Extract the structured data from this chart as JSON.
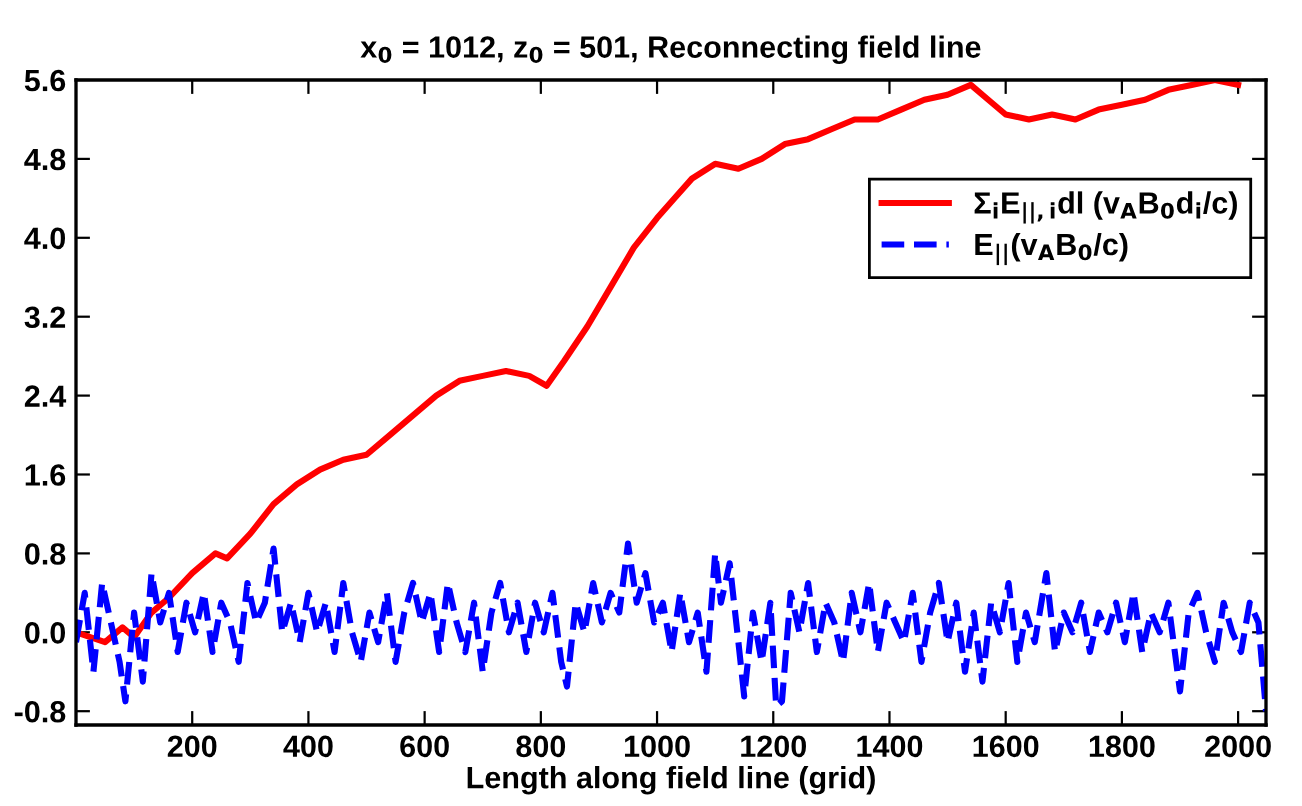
{
  "chart_data": {
    "type": "line",
    "title": "x$_{0}$ = 1012, z$_{0}$ = 501, Reconnecting field line",
    "xlabel": "Length along field line (grid)",
    "xlim": [
      0,
      2048
    ],
    "xticks": [
      200,
      400,
      600,
      800,
      1000,
      1200,
      1400,
      1600,
      1800,
      2000
    ],
    "ylim": [
      -0.94,
      5.6
    ],
    "yticks": [
      -0.8,
      {
        "value": 0,
        "label": "0.0"
      },
      0.8,
      1.6,
      2.4,
      3.2,
      {
        "value": 4,
        "label": "4.0"
      },
      4.8,
      5.6
    ],
    "grid": false,
    "legend": "top right",
    "marker": "none",
    "series": [
      {
        "name": "Σ$_{i}$E$_{||,i}$dl (v$_{A}$B$_{0}$d$_{i}$/c)",
        "color": "#ff0000",
        "line_style": "solid",
        "x": [
          0,
          50,
          80,
          100,
          130,
          160,
          200,
          240,
          260,
          300,
          340,
          380,
          420,
          460,
          500,
          540,
          580,
          620,
          660,
          700,
          740,
          780,
          810,
          840,
          880,
          920,
          960,
          1000,
          1030,
          1060,
          1100,
          1140,
          1180,
          1220,
          1260,
          1300,
          1340,
          1380,
          1420,
          1460,
          1500,
          1540,
          1570,
          1600,
          1640,
          1680,
          1720,
          1760,
          1800,
          1840,
          1880,
          1920,
          1960,
          2000
        ],
        "values": [
          0.0,
          -0.1,
          0.05,
          -0.05,
          0.2,
          0.35,
          0.6,
          0.8,
          0.75,
          1.0,
          1.3,
          1.5,
          1.65,
          1.75,
          1.8,
          2.0,
          2.2,
          2.4,
          2.55,
          2.6,
          2.65,
          2.6,
          2.5,
          2.75,
          3.1,
          3.5,
          3.9,
          4.2,
          4.4,
          4.6,
          4.75,
          4.7,
          4.8,
          4.95,
          5.0,
          5.1,
          5.2,
          5.2,
          5.3,
          5.4,
          5.45,
          5.55,
          5.4,
          5.25,
          5.2,
          5.25,
          5.2,
          5.3,
          5.35,
          5.4,
          5.5,
          5.55,
          5.6,
          5.55
        ]
      },
      {
        "name": "E$_{||}$(v$_{A}$B$_{0}$/c)",
        "color": "#0000ff",
        "line_style": "dashed",
        "x": [
          0,
          15,
          30,
          45,
          60,
          75,
          85,
          100,
          115,
          130,
          145,
          160,
          175,
          190,
          205,
          220,
          235,
          250,
          265,
          280,
          295,
          310,
          325,
          340,
          355,
          370,
          385,
          400,
          415,
          430,
          445,
          460,
          475,
          490,
          505,
          520,
          535,
          550,
          565,
          580,
          595,
          610,
          625,
          640,
          655,
          670,
          685,
          700,
          715,
          730,
          745,
          760,
          775,
          790,
          805,
          820,
          835,
          845,
          860,
          875,
          890,
          905,
          920,
          935,
          950,
          965,
          980,
          995,
          1010,
          1025,
          1040,
          1055,
          1070,
          1085,
          1100,
          1110,
          1125,
          1140,
          1150,
          1165,
          1180,
          1195,
          1205,
          1215,
          1230,
          1245,
          1260,
          1275,
          1290,
          1305,
          1320,
          1335,
          1350,
          1365,
          1380,
          1395,
          1410,
          1425,
          1440,
          1455,
          1470,
          1485,
          1500,
          1515,
          1530,
          1545,
          1560,
          1575,
          1590,
          1605,
          1620,
          1635,
          1650,
          1670,
          1685,
          1700,
          1715,
          1730,
          1745,
          1760,
          1775,
          1790,
          1805,
          1820,
          1835,
          1850,
          1865,
          1880,
          1900,
          1915,
          1930,
          1945,
          1960,
          1975,
          1990,
          2005,
          2020,
          2035,
          2048
        ],
        "values": [
          -0.1,
          0.4,
          -0.4,
          0.5,
          0.1,
          -0.3,
          -0.7,
          0.2,
          -0.5,
          0.6,
          0.1,
          0.4,
          -0.2,
          0.3,
          0.0,
          0.4,
          -0.2,
          0.3,
          0.1,
          -0.3,
          0.5,
          0.1,
          0.3,
          0.85,
          0.0,
          0.3,
          -0.1,
          0.4,
          0.0,
          0.3,
          -0.2,
          0.5,
          0.0,
          -0.3,
          0.2,
          -0.1,
          0.4,
          -0.3,
          0.2,
          0.5,
          0.1,
          0.4,
          -0.2,
          0.5,
          0.1,
          -0.2,
          0.3,
          -0.4,
          0.2,
          0.5,
          0.0,
          0.3,
          -0.2,
          0.3,
          0.0,
          0.4,
          -0.3,
          -0.55,
          0.3,
          0.0,
          0.5,
          0.1,
          0.4,
          0.2,
          0.9,
          0.3,
          0.6,
          0.1,
          0.3,
          -0.2,
          0.4,
          -0.1,
          0.2,
          -0.4,
          0.8,
          0.3,
          0.7,
          -0.1,
          -0.65,
          0.2,
          -0.3,
          0.3,
          -0.75,
          -0.7,
          0.4,
          0.0,
          0.5,
          -0.2,
          0.3,
          0.1,
          -0.3,
          0.4,
          0.0,
          0.5,
          -0.2,
          0.3,
          0.1,
          -0.1,
          0.4,
          -0.3,
          0.2,
          0.5,
          -0.1,
          0.3,
          -0.4,
          0.2,
          -0.5,
          0.3,
          0.0,
          0.5,
          -0.3,
          0.2,
          -0.1,
          0.6,
          -0.2,
          0.2,
          0.0,
          0.3,
          -0.2,
          0.2,
          0.0,
          0.3,
          -0.1,
          0.4,
          -0.2,
          0.2,
          0.0,
          0.3,
          -0.6,
          0.2,
          0.4,
          0.0,
          -0.3,
          0.3,
          0.0,
          -0.2,
          0.3,
          0.1,
          -0.8
        ]
      }
    ]
  }
}
